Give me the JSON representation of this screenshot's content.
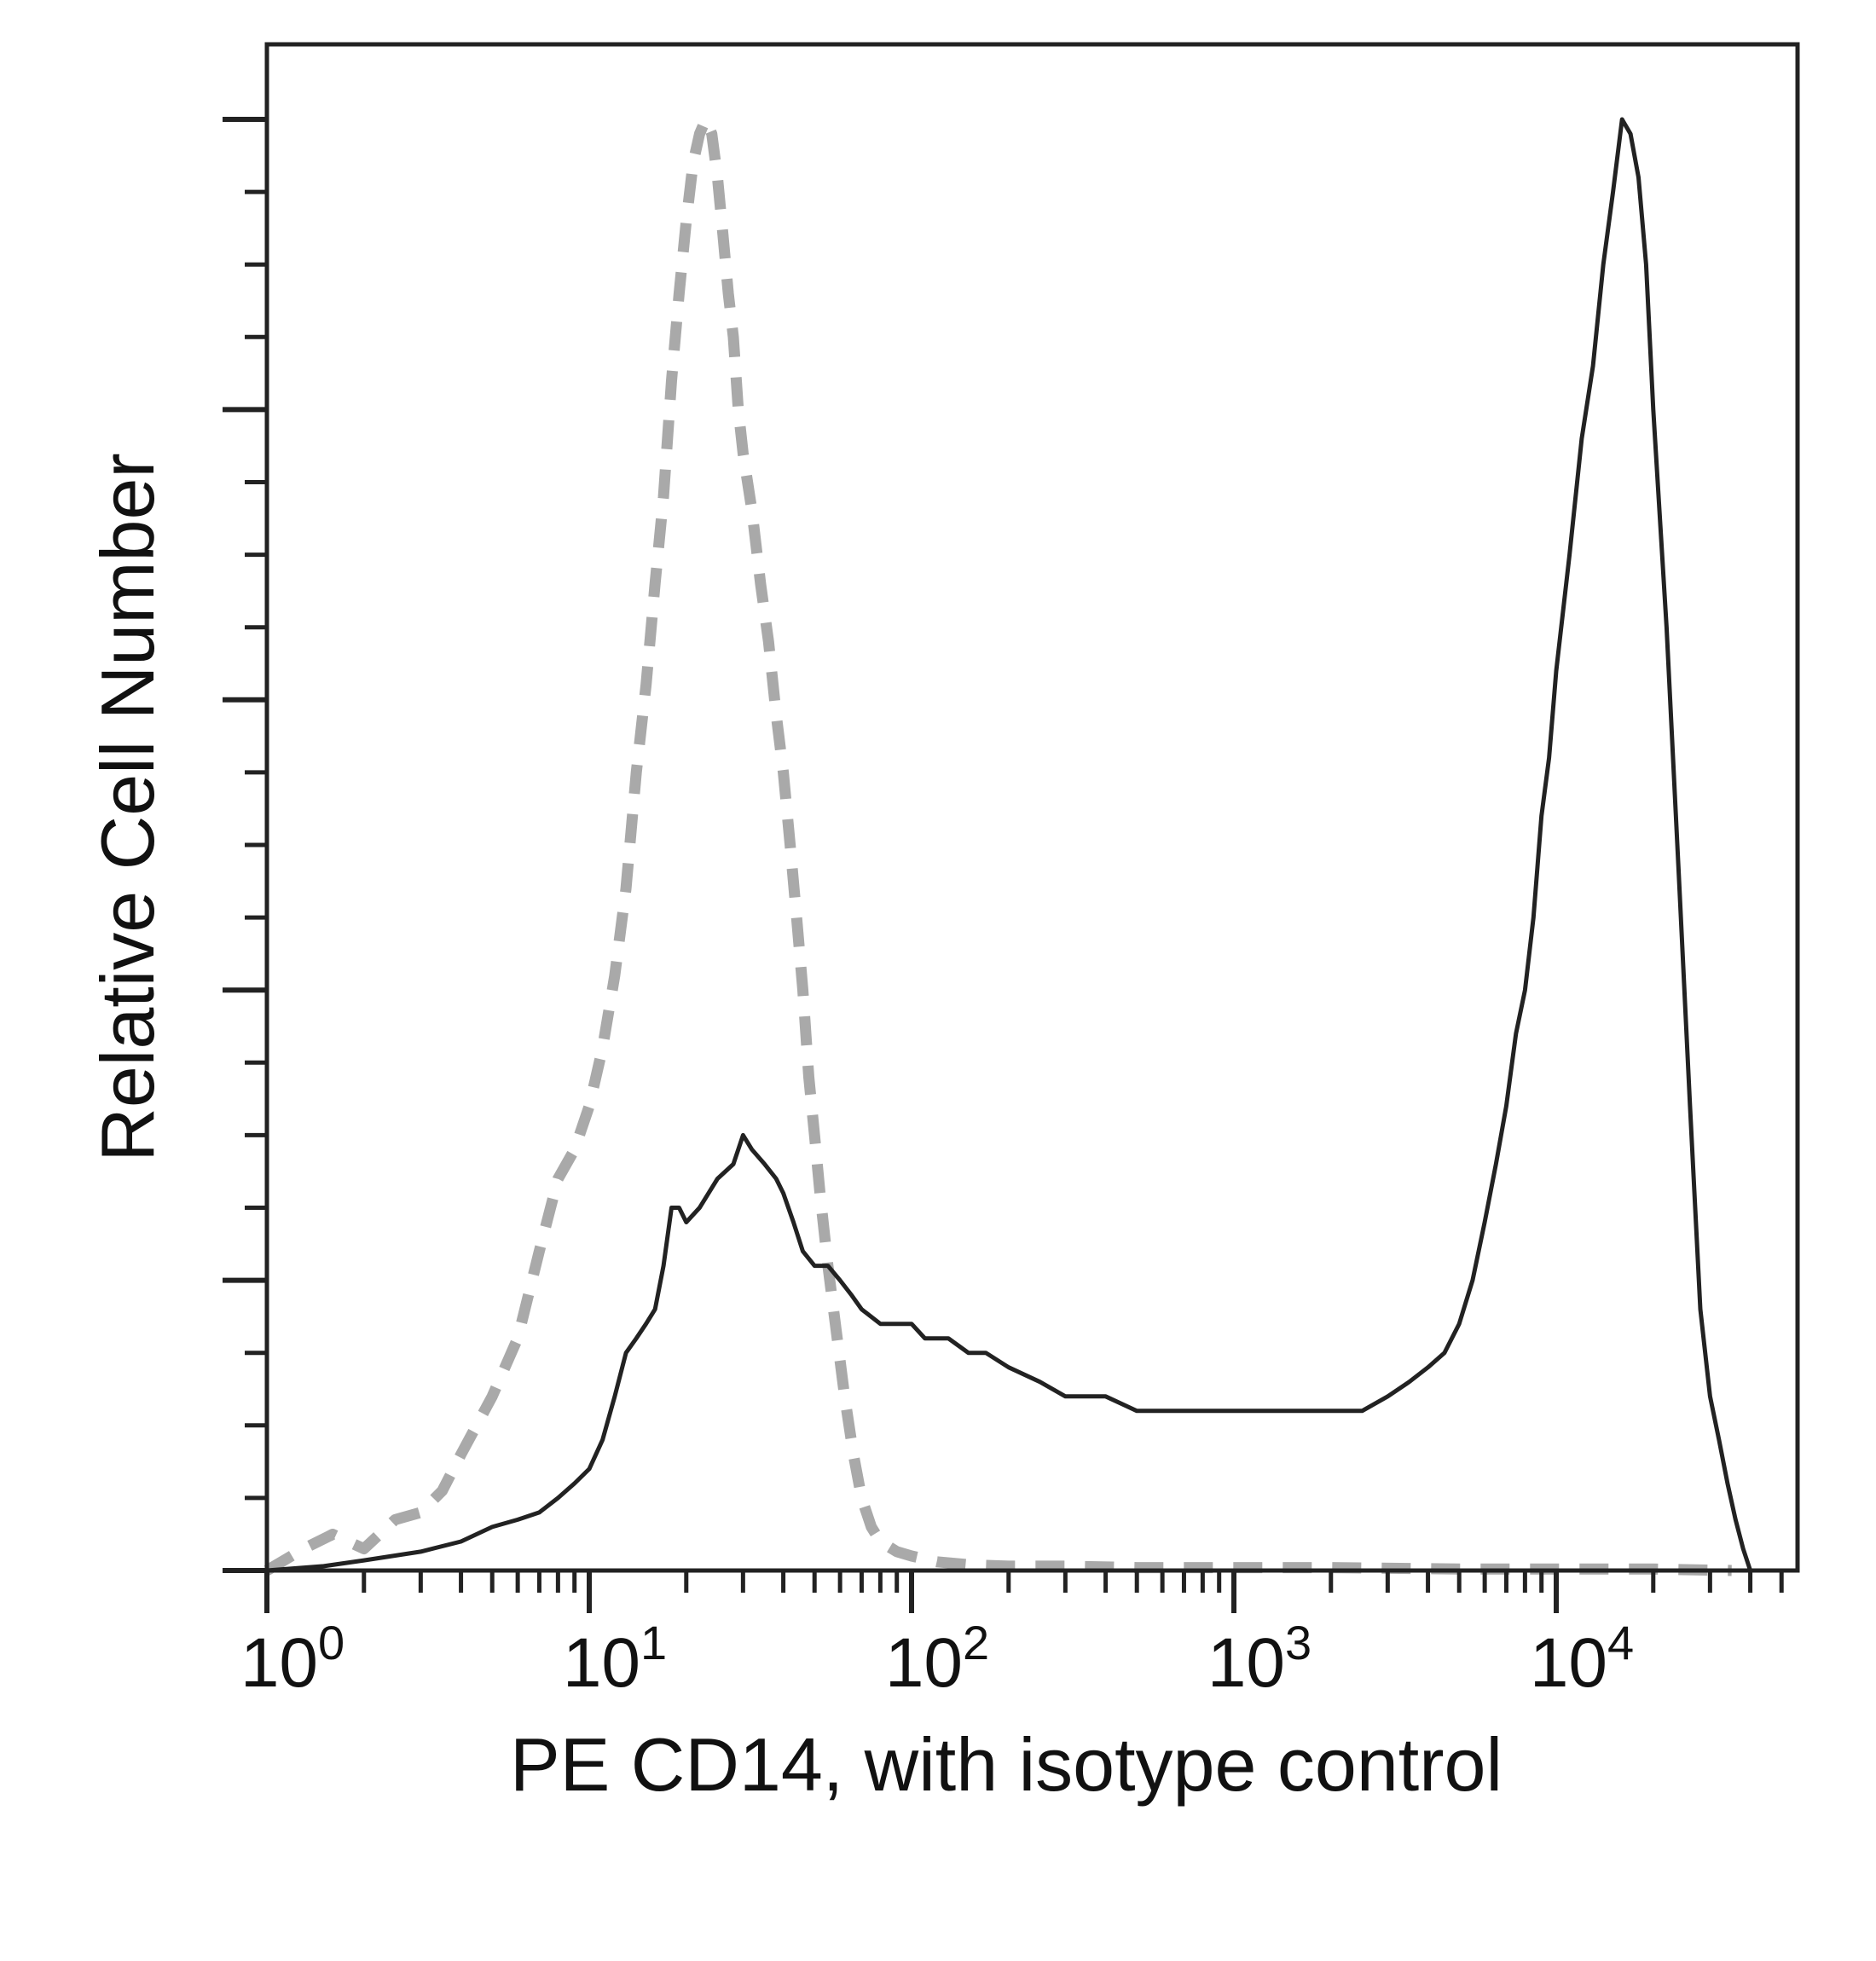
{
  "chart_data": {
    "type": "line",
    "title": "",
    "xlabel": "PE CD14, with isotype control",
    "ylabel": "Relative Cell Number",
    "x_scale": "log",
    "xlim": [
      1,
      50000
    ],
    "ylim": [
      0,
      100
    ],
    "x_ticks": [
      {
        "base": "10",
        "exp": "0",
        "value": 1
      },
      {
        "base": "10",
        "exp": "1",
        "value": 10
      },
      {
        "base": "10",
        "exp": "2",
        "value": 100
      },
      {
        "base": "10",
        "exp": "3",
        "value": 1000
      },
      {
        "base": "10",
        "exp": "4",
        "value": 10000
      }
    ],
    "y_major_ticks": [
      0,
      20,
      40,
      60,
      80,
      100
    ],
    "y_minor_per_major": 3,
    "grid": false,
    "legend": "none",
    "series": [
      {
        "style": "dashed",
        "color": "#a9a9a9",
        "x": [
          1,
          1.3,
          1.6,
          2,
          2.5,
          3,
          3.5,
          4,
          5,
          6,
          7,
          8,
          9,
          10,
          11,
          12,
          13,
          14,
          15,
          16,
          17,
          18,
          19,
          20,
          21,
          22,
          23,
          24,
          25,
          26,
          27,
          28,
          29,
          30,
          32,
          34,
          36,
          38,
          40,
          42,
          44,
          46,
          48,
          50,
          52,
          55,
          58,
          62,
          66,
          70,
          75,
          80,
          90,
          100,
          120,
          150,
          200,
          300,
          500,
          1000,
          2000,
          5000,
          10000,
          20000,
          35000
        ],
        "y": [
          0,
          1.5,
          2.5,
          1.5,
          3.5,
          4,
          5.5,
          8,
          12,
          16,
          22,
          27,
          29,
          32,
          36,
          41,
          47,
          55,
          61,
          68,
          74,
          82,
          88,
          93,
          97,
          99,
          100,
          99,
          96,
          92,
          88,
          85,
          80,
          77,
          73,
          68,
          64,
          59,
          55,
          50,
          45,
          40,
          34,
          30,
          26,
          21,
          17,
          12,
          8,
          5,
          3,
          2,
          1.3,
          1,
          0.6,
          0.4,
          0.3,
          0.3,
          0.2,
          0.2,
          0.2,
          0.1,
          0.1,
          0.1,
          0
        ]
      },
      {
        "style": "solid",
        "color": "#222222",
        "x": [
          1,
          1.5,
          2,
          3,
          4,
          5,
          6,
          7,
          8,
          9,
          10,
          11,
          12,
          13,
          14,
          15,
          16,
          17,
          18,
          19,
          20,
          22,
          25,
          28,
          30,
          32,
          35,
          38,
          40,
          43,
          46,
          50,
          55,
          60,
          65,
          70,
          80,
          90,
          100,
          110,
          120,
          130,
          150,
          170,
          200,
          250,
          300,
          400,
          500,
          600,
          800,
          1000,
          1300,
          1600,
          2000,
          2500,
          3000,
          3500,
          4000,
          4500,
          5000,
          5500,
          6000,
          6500,
          7000,
          7500,
          8000,
          8500,
          9000,
          9500,
          10000,
          11000,
          12000,
          13000,
          14000,
          15000,
          16000,
          17000,
          18000,
          19000,
          20000,
          22000,
          24000,
          26000,
          28000,
          30000,
          32000,
          34000,
          36000,
          38000,
          40000
        ],
        "y": [
          0,
          0.3,
          0.7,
          1.3,
          2,
          3,
          3.5,
          4,
          5,
          6,
          7,
          9,
          12,
          15,
          16,
          17,
          18,
          21,
          25,
          25,
          24,
          25,
          27,
          28,
          30,
          29,
          28,
          27,
          26,
          24,
          22,
          21,
          21,
          20,
          19,
          18,
          17,
          17,
          17,
          16,
          16,
          16,
          15,
          15,
          14,
          13,
          12,
          12,
          11,
          11,
          11,
          11,
          11,
          11,
          11,
          11,
          12,
          13,
          14,
          15,
          17,
          20,
          24,
          28,
          32,
          37,
          40,
          45,
          52,
          56,
          62,
          70,
          78,
          83,
          90,
          95,
          100,
          99,
          96,
          90,
          80,
          65,
          48,
          32,
          18,
          12,
          9,
          6,
          3.5,
          1.5,
          0
        ]
      }
    ]
  }
}
